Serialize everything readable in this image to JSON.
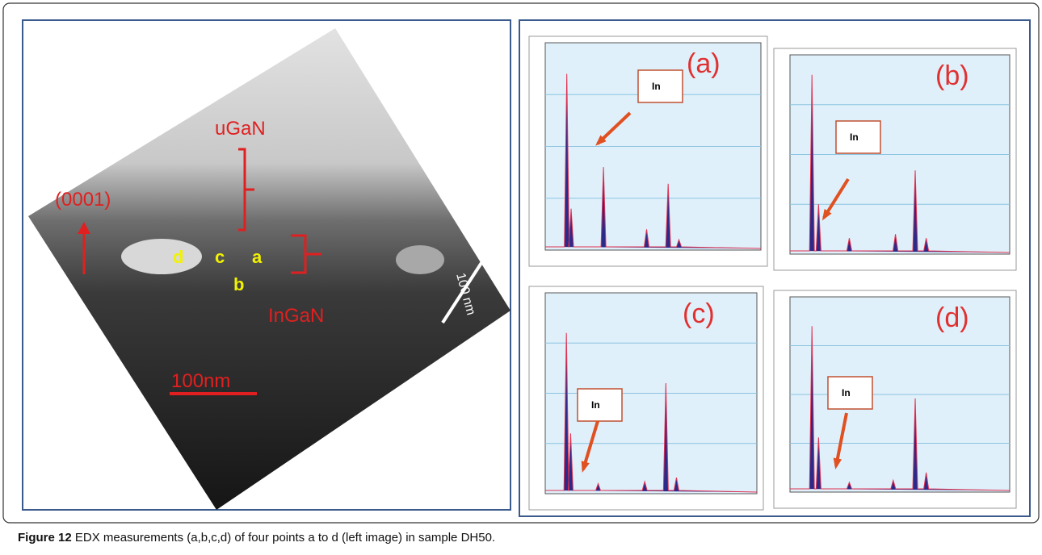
{
  "left_image": {
    "labels": {
      "ugan": "uGaN",
      "direction": "(0001)",
      "point_d": "d",
      "point_c": "c",
      "point_a": "a",
      "point_b": "b",
      "ingan": "InGaN",
      "scale_bar": "100nm",
      "inset_scale": "100 nm"
    }
  },
  "right_panels": [
    {
      "label": "(a)",
      "marker": "In"
    },
    {
      "label": "(b)",
      "marker": "In"
    },
    {
      "label": "(c)",
      "marker": "In"
    },
    {
      "label": "(d)",
      "marker": "In"
    }
  ],
  "caption": {
    "label": "Figure 12",
    "text": "EDX measurements (a,b,c,d) of four points a to d (left image) in sample DH50."
  }
}
